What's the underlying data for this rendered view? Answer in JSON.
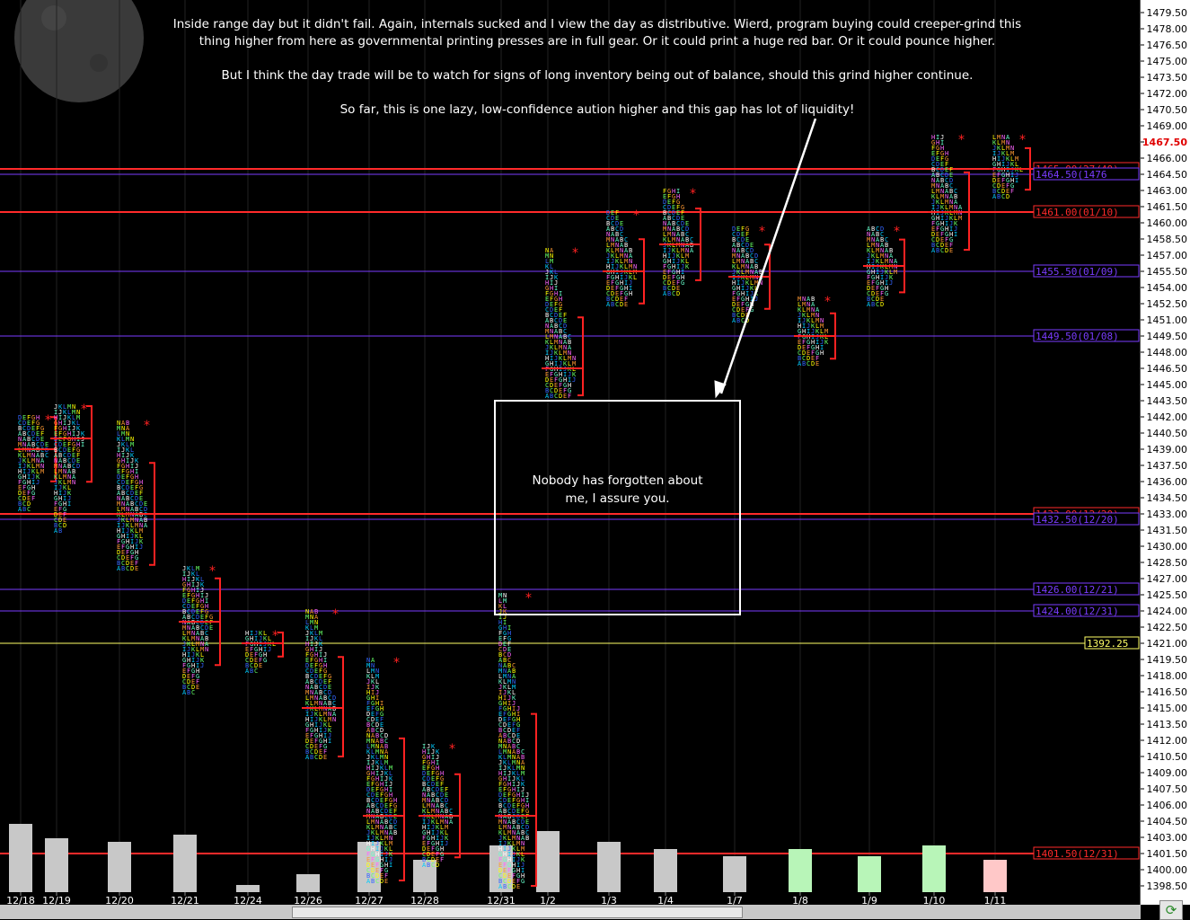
{
  "annotation_main": [
    "Inside range day but it didn't fail.  Again, internals sucked and I view the day as distributive.  Wierd, program buying could creeper-grind this",
    "thing higher from here as governmental printing presses are in  full gear.   Or it could print a huge red bar.  Or it could pounce higher.",
    "",
    "But I think the day trade will be to watch for signs of long inventory being out of balance, should this grind higher continue.",
    "",
    "So far, this is one lazy, low-confidence aution higher and this gap has lot of liquidity!"
  ],
  "annotation_box": [
    "Nobody has forgotten about",
    "me, I assure you."
  ],
  "refresh_icon": "refresh-icon",
  "chart_data": {
    "type": "market-profile",
    "ylim": [
      1397.5,
      1480.5
    ],
    "y_ticks": [
      "1479.50",
      "1478.00",
      "1476.50",
      "1475.00",
      "1473.50",
      "1472.00",
      "1470.50",
      "1469.00",
      "1467.50",
      "1466.00",
      "1464.50",
      "1463.00",
      "1461.50",
      "1460.00",
      "1458.50",
      "1457.00",
      "1455.50",
      "1454.00",
      "1452.50",
      "1451.00",
      "1449.50",
      "1448.00",
      "1446.50",
      "1445.00",
      "1443.50",
      "1442.00",
      "1440.50",
      "1439.00",
      "1437.50",
      "1436.00",
      "1434.50",
      "1433.00",
      "1431.50",
      "1430.00",
      "1428.50",
      "1427.00",
      "1425.50",
      "1424.00",
      "1422.50",
      "1421.00",
      "1419.50",
      "1418.00",
      "1416.50",
      "1415.00",
      "1413.50",
      "1412.00",
      "1410.50",
      "1409.00",
      "1407.50",
      "1406.00",
      "1404.50",
      "1403.00",
      "1401.50",
      "1400.00",
      "1398.50"
    ],
    "current_price": "1467.50",
    "x_labels": [
      "12/18",
      "12/19",
      "12/20",
      "12/21",
      "12/24",
      "12/26",
      "12/27",
      "12/28",
      "12/31",
      "1/2",
      "1/3",
      "1/4",
      "1/7",
      "1/8",
      "1/9",
      "1/10",
      "1/11"
    ],
    "sessions": [
      {
        "label": "12/18",
        "low": 1433.5,
        "high": 1442.0,
        "poc": 1439.0,
        "volume": 0.95
      },
      {
        "label": "12/19",
        "low": 1431.5,
        "high": 1443.0,
        "poc": 1440.0,
        "volume": 0.75
      },
      {
        "label": "12/20",
        "low": 1428.0,
        "high": 1441.5,
        "poc": 1433.0,
        "volume": 0.7
      },
      {
        "label": "12/21",
        "low": 1416.5,
        "high": 1428.0,
        "poc": 1423.0,
        "volume": 0.8
      },
      {
        "label": "12/24",
        "low": 1418.5,
        "high": 1422.0,
        "poc": 1421.0,
        "volume": 0.1
      },
      {
        "label": "12/26",
        "low": 1410.5,
        "high": 1424.0,
        "poc": 1415.0,
        "volume": 0.25
      },
      {
        "label": "12/27",
        "low": 1399.0,
        "high": 1419.5,
        "poc": 1405.0,
        "volume": 0.7
      },
      {
        "label": "12/28",
        "low": 1400.5,
        "high": 1411.5,
        "poc": 1405.0,
        "volume": 0.45
      },
      {
        "label": "12/31",
        "low": 1398.5,
        "high": 1425.5,
        "poc": 1405.0,
        "volume": 0.65
      },
      {
        "label": "1/2",
        "low": 1444.0,
        "high": 1457.5,
        "poc": 1446.5,
        "volume": 0.85
      },
      {
        "label": "1/3",
        "low": 1452.5,
        "high": 1461.0,
        "poc": 1455.5,
        "volume": 0.7
      },
      {
        "label": "1/4",
        "low": 1453.5,
        "high": 1463.0,
        "poc": 1458.0,
        "volume": 0.6
      },
      {
        "label": "1/7",
        "low": 1451.0,
        "high": 1459.5,
        "poc": 1455.0,
        "volume": 0.5
      },
      {
        "label": "1/8",
        "low": 1447.0,
        "high": 1453.0,
        "poc": 1449.5,
        "volume": 0.6
      },
      {
        "label": "1/9",
        "low": 1452.5,
        "high": 1459.5,
        "poc": 1456.0,
        "volume": 0.5
      },
      {
        "label": "1/10",
        "low": 1457.5,
        "high": 1468.0,
        "poc": 1461.0,
        "volume": 0.65
      },
      {
        "label": "1/11",
        "low": 1462.5,
        "high": 1468.0,
        "poc": 1465.0,
        "volume": 0.45
      }
    ],
    "levels": [
      {
        "price": 1465.0,
        "label": "1465.00(27/40)",
        "color": "#ff2a2a"
      },
      {
        "price": 1464.5,
        "label": "1464.50(1476",
        "color": "#7a3cff"
      },
      {
        "price": 1461.0,
        "label": "1461.00(01/10)",
        "color": "#ff2a2a"
      },
      {
        "price": 1455.5,
        "label": "1455.50(01/09)",
        "color": "#7a3cff"
      },
      {
        "price": 1449.5,
        "label": "1449.50(01/08)",
        "color": "#7a3cff"
      },
      {
        "price": 1433.0,
        "label": "1433.00(12/20)",
        "color": "#ff2a2a"
      },
      {
        "price": 1432.5,
        "label": "1432.50(12/20)",
        "color": "#7a3cff"
      },
      {
        "price": 1426.0,
        "label": "1426.00(12/21)",
        "color": "#7a3cff"
      },
      {
        "price": 1424.0,
        "label": "1424.00(12/31)",
        "color": "#7a3cff"
      },
      {
        "price": 1421.0,
        "label": "1392.25",
        "color": "#ffff66"
      },
      {
        "price": 1401.5,
        "label": "1401.50(12/31)",
        "color": "#ff2a2a"
      }
    ],
    "colors": {
      "background": "#000000",
      "up_vol": "#b8f5b8",
      "down_vol": "#ffc8c8",
      "neutral_vol": "#c8c8c8"
    }
  }
}
